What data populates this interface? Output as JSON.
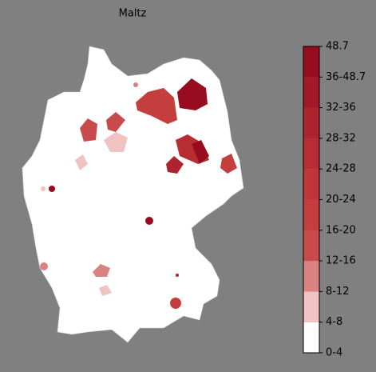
{
  "map": {
    "title": "Maltz",
    "legend": {
      "labels": [
        "0-4",
        "4-8",
        "8-12",
        "12-16",
        "16-20",
        "20-24",
        "24-28",
        "28-32",
        "32-36",
        "36-48.7",
        "48.7"
      ],
      "colors": [
        "#ffffff",
        "#f0c2c2",
        "#da8282",
        "#c84a4a",
        "#c43e3e",
        "#bf3539",
        "#b82d34",
        "#ae242e",
        "#a31828",
        "#980c20"
      ]
    }
  }
}
